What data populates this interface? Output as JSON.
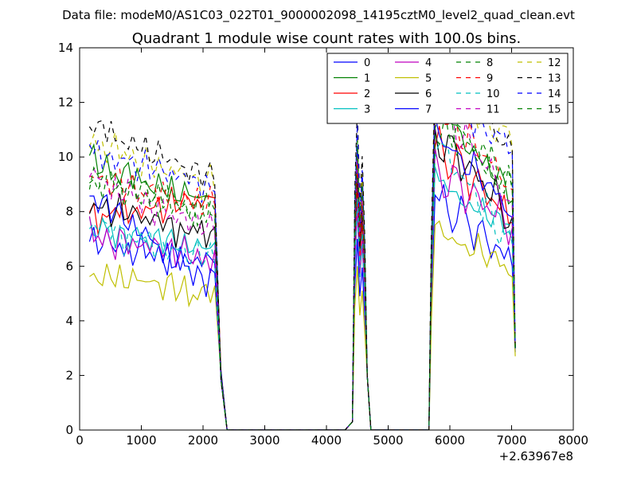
{
  "suptitle": "Data file: modeM0/AS1C03_022T01_9000002098_14195cztM0_level2_quad_clean.evt",
  "chart_data": {
    "type": "line",
    "title": "Quadrant 1 module wise count rates with 100.0s bins.",
    "xlabel": "",
    "ylabel": "",
    "x_offset_label": "+2.63967e8",
    "xlim": [
      0,
      8000
    ],
    "ylim": [
      0,
      14
    ],
    "xticks": [
      0,
      1000,
      2000,
      3000,
      4000,
      5000,
      6000,
      7000,
      8000
    ],
    "yticks": [
      0,
      2,
      4,
      6,
      8,
      10,
      12,
      14
    ],
    "grid": false,
    "legend_position": "top-right",
    "legend_columns": 4,
    "segment_template": {
      "x": [
        160,
        230,
        300,
        370,
        440,
        510,
        580,
        650,
        720,
        790,
        860,
        930,
        1000,
        1070,
        1140,
        1210,
        1280,
        1350,
        1420,
        1490,
        1560,
        1630,
        1700,
        1770,
        1840,
        1910,
        1980,
        2050,
        2120,
        2190,
        2290,
        2390,
        4300,
        4420,
        4460,
        4500,
        4540,
        4580,
        4620,
        4660,
        4720,
        4780,
        5660,
        5700,
        5760,
        5830,
        5900,
        5970,
        6040,
        6110,
        6180,
        6250,
        6320,
        6390,
        6460,
        6530,
        6600,
        6670,
        6740,
        6810,
        6880,
        6950,
        7010,
        7060
      ],
      "shape": [
        0.0,
        0.1,
        -0.1,
        0.05,
        0.15,
        -0.05,
        0.0,
        0.1,
        -0.15,
        0.05,
        -0.1,
        0.0,
        0.15,
        -0.05,
        0.1,
        -0.1,
        0.05,
        0.0,
        -0.15,
        0.1,
        0.05,
        -0.05,
        0.1,
        -0.1,
        0.0,
        0.15,
        -0.05,
        0.05,
        0.1,
        0.0
      ]
    },
    "series": [
      {
        "name": "0",
        "color": "#0000ff",
        "dash": "solid",
        "pre": [
          6.9,
          6.1
        ],
        "peak": 7.0,
        "post": [
          8.6,
          6.2
        ],
        "peak_gain": 0.95
      },
      {
        "name": "1",
        "color": "#008000",
        "dash": "solid",
        "pre": [
          9.8,
          8.4
        ],
        "peak": 10.0,
        "post": [
          12.0,
          8.6
        ],
        "peak_gain": 1.0
      },
      {
        "name": "2",
        "color": "#ff0000",
        "dash": "solid",
        "pre": [
          7.8,
          8.3
        ],
        "peak": 9.0,
        "post": [
          10.5,
          7.8
        ],
        "peak_gain": 1.0
      },
      {
        "name": "3",
        "color": "#00bfbf",
        "dash": "solid",
        "pre": [
          7.4,
          6.6
        ],
        "peak": 8.0,
        "post": [
          9.2,
          7.2
        ],
        "peak_gain": 1.0
      },
      {
        "name": "4",
        "color": "#bf00bf",
        "dash": "solid",
        "pre": [
          7.1,
          6.3
        ],
        "peak": 8.2,
        "post": [
          9.5,
          7.6
        ],
        "peak_gain": 1.0
      },
      {
        "name": "5",
        "color": "#bfbf00",
        "dash": "solid",
        "pre": [
          5.7,
          5.0
        ],
        "peak": 6.0,
        "post": [
          7.4,
          5.8
        ],
        "peak_gain": 0.9
      },
      {
        "name": "6",
        "color": "#000000",
        "dash": "solid",
        "pre": [
          8.2,
          7.2
        ],
        "peak": 9.5,
        "post": [
          10.8,
          8.0
        ],
        "peak_gain": 1.0
      },
      {
        "name": "7",
        "color": "#0000ff",
        "dash": "solid",
        "pre": [
          8.6,
          5.6
        ],
        "peak": 10.4,
        "post": [
          11.0,
          8.0
        ],
        "peak_gain": 1.0
      },
      {
        "name": "8",
        "color": "#008000",
        "dash": "dashed",
        "pre": [
          9.0,
          8.0
        ],
        "peak": 9.8,
        "post": [
          11.2,
          9.2
        ],
        "peak_gain": 1.0
      },
      {
        "name": "9",
        "color": "#ff0000",
        "dash": "dashed",
        "pre": [
          9.2,
          8.3
        ],
        "peak": 10.0,
        "post": [
          11.8,
          9.0
        ],
        "peak_gain": 1.0
      },
      {
        "name": "10",
        "color": "#00bfbf",
        "dash": "dashed",
        "pre": [
          7.5,
          6.3
        ],
        "peak": 8.5,
        "post": [
          10.5,
          7.0
        ],
        "peak_gain": 1.0
      },
      {
        "name": "11",
        "color": "#bf00bf",
        "dash": "dashed",
        "pre": [
          9.3,
          7.4
        ],
        "peak": 10.0,
        "post": [
          12.0,
          8.5
        ],
        "peak_gain": 1.0
      },
      {
        "name": "12",
        "color": "#bfbf00",
        "dash": "dashed",
        "pre": [
          10.6,
          9.0
        ],
        "peak": 11.0,
        "post": [
          13.2,
          10.6
        ],
        "peak_gain": 1.0
      },
      {
        "name": "13",
        "color": "#000000",
        "dash": "dashed",
        "pre": [
          11.2,
          9.3
        ],
        "peak": 11.8,
        "post": [
          13.3,
          10.5
        ],
        "peak_gain": 1.0
      },
      {
        "name": "14",
        "color": "#0000ff",
        "dash": "dashed",
        "pre": [
          10.2,
          9.0
        ],
        "peak": 11.2,
        "post": [
          12.4,
          10.4
        ],
        "peak_gain": 1.0
      },
      {
        "name": "15",
        "color": "#008000",
        "dash": "dashed",
        "pre": [
          9.3,
          8.0
        ],
        "peak": 10.6,
        "post": [
          11.6,
          9.0
        ],
        "peak_gain": 1.0
      }
    ]
  }
}
